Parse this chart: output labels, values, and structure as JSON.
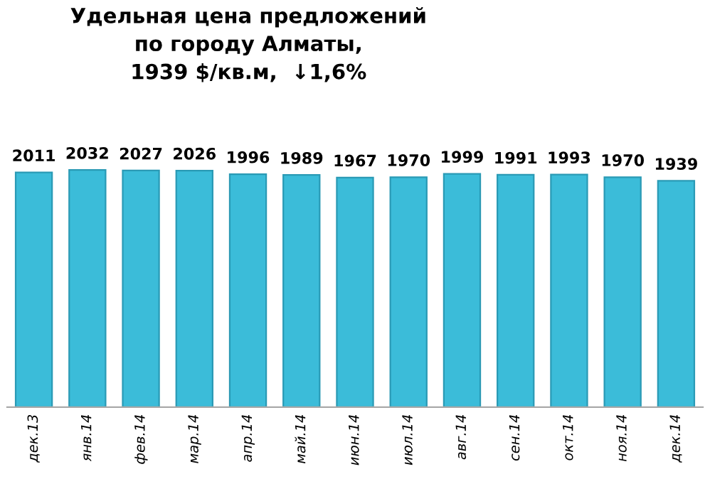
{
  "chart_data": {
    "type": "bar",
    "title": "Удельная цена предложений\nпо городу Алматы,\n1939 $/кв.м,  ↓1,6%",
    "categories": [
      "дек.13",
      "янв.14",
      "фев.14",
      "мар.14",
      "апр.14",
      "май.14",
      "июн.14",
      "июл.14",
      "авг.14",
      "сен.14",
      "окт.14",
      "ноя.14",
      "дек.14"
    ],
    "values": [
      2011,
      2032,
      2027,
      2026,
      1996,
      1989,
      1967,
      1970,
      1999,
      1991,
      1993,
      1970,
      1939
    ],
    "color": "#3bbcd9",
    "data_labels": true,
    "grid": false,
    "legend": false,
    "tick_labels": "x"
  }
}
